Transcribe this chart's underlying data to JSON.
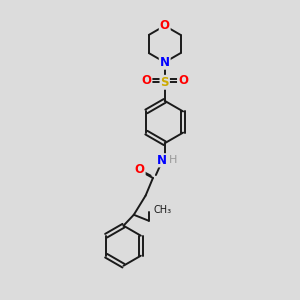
{
  "bg_color": "#dcdcdc",
  "bond_color": "#1a1a1a",
  "atom_colors": {
    "O": "#ff0000",
    "N": "#0000ff",
    "S": "#ccaa00",
    "H": "#999999",
    "C": "#1a1a1a"
  },
  "figsize": [
    3.0,
    3.0
  ],
  "dpi": 100,
  "lw": 1.4,
  "fs": 8.5
}
